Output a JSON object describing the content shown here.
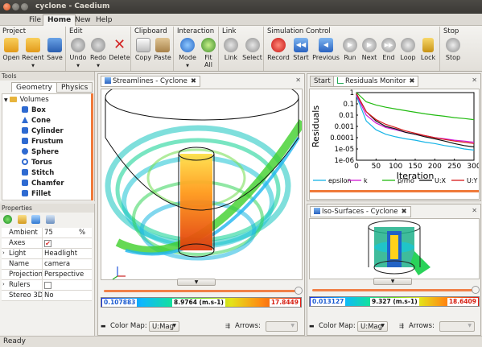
{
  "window": {
    "title": "cyclone - Caedium"
  },
  "menu": {
    "tabs": [
      "File",
      "Home",
      "New",
      "Help"
    ],
    "active": "Home"
  },
  "ribbon": {
    "groups": [
      {
        "title": "Project",
        "buttons": [
          "Open",
          "Recent",
          "Save"
        ]
      },
      {
        "title": "Edit",
        "buttons": [
          "Undo",
          "Redo",
          "Delete"
        ]
      },
      {
        "title": "Clipboard",
        "buttons": [
          "Copy",
          "Paste"
        ]
      },
      {
        "title": "Interaction",
        "buttons": [
          "Mode",
          "Fit All"
        ]
      },
      {
        "title": "Link",
        "buttons": [
          "Link",
          "Select"
        ]
      },
      {
        "title": "Simulation Control",
        "buttons": [
          "Record",
          "Start",
          "Previous",
          "Run",
          "Next",
          "End",
          "Loop",
          "Lock"
        ]
      },
      {
        "title": "Stop",
        "buttons": [
          "Stop"
        ]
      }
    ]
  },
  "tools": {
    "header": "Tools",
    "tabs": [
      "Geometry",
      "Physics"
    ],
    "active_tab": "Geometry",
    "tree_root": "Volumes",
    "tree_items": [
      "Box",
      "Cone",
      "Cylinder",
      "Frustum",
      "Sphere",
      "Torus",
      "Stitch",
      "Chamfer",
      "Fillet"
    ]
  },
  "properties": {
    "header": "Properties",
    "rows": [
      {
        "key": "Ambient",
        "value": "75",
        "unit": "%"
      },
      {
        "key": "Axes",
        "value": "",
        "checked": true
      },
      {
        "key": "Light",
        "value": "Headlight",
        "expandable": true
      },
      {
        "key": "Name",
        "value": "camera"
      },
      {
        "key": "Projection",
        "value": "Perspective"
      },
      {
        "key": "Rulers",
        "value": "",
        "checked": false,
        "expandable": true
      },
      {
        "key": "Stereo 3D",
        "value": "No"
      }
    ]
  },
  "viewport_streamlines": {
    "tab": "Streamlines - Cyclone",
    "colorbar": {
      "min": "0.107883",
      "mid": "8.9764 (m.s-1)",
      "max": "17.8449"
    },
    "color_map_label": "Color Map:",
    "color_map_value": "U:Mag",
    "arrows_label": "Arrows:"
  },
  "viewport_residuals": {
    "tabs": [
      "Start",
      "Residuals Monitor"
    ],
    "active_tab": "Residuals Monitor"
  },
  "viewport_iso": {
    "tab": "Iso-Surfaces - Cyclone",
    "colorbar": {
      "min": "0.013127",
      "mid": "9.327 (m.s-1)",
      "max": "18.6409"
    },
    "color_map_label": "Color Map:",
    "color_map_value": "U:Mag",
    "arrows_label": "Arrows:"
  },
  "chart_data": {
    "type": "line",
    "xlabel": "Iteration",
    "ylabel": "Residuals",
    "log_y": true,
    "xlim": [
      0,
      300
    ],
    "ylim": [
      1e-06,
      1
    ],
    "x_ticks": [
      "0",
      "50",
      "100",
      "150",
      "200",
      "250",
      "300"
    ],
    "y_ticks": [
      "1",
      "0.1",
      "0.01",
      "0.001",
      "0.0001",
      "1e-05",
      "1e-06"
    ],
    "x": [
      0,
      25,
      50,
      75,
      100,
      125,
      150,
      175,
      200,
      225,
      250,
      275,
      300
    ],
    "series": [
      {
        "name": "epsilon",
        "color": "#16b4e6",
        "values": [
          0.5,
          0.003,
          0.0005,
          0.0002,
          0.00012,
          8e-05,
          6e-05,
          4e-05,
          3e-05,
          2e-05,
          1.5e-05,
          1e-05,
          8e-06
        ]
      },
      {
        "name": "k",
        "color": "#d219d6",
        "values": [
          0.6,
          0.01,
          0.002,
          0.0008,
          0.0005,
          0.0003,
          0.0002,
          0.00015,
          0.0001,
          8e-05,
          6e-05,
          5e-05,
          4e-05
        ]
      },
      {
        "name": "p/rho",
        "color": "#22bb11",
        "values": [
          1.0,
          0.15,
          0.08,
          0.05,
          0.035,
          0.025,
          0.018,
          0.013,
          0.01,
          0.008,
          0.006,
          0.005,
          0.004
        ]
      },
      {
        "name": "U:X",
        "color": "#111111",
        "values": [
          0.8,
          0.02,
          0.003,
          0.001,
          0.0006,
          0.0003,
          0.0002,
          0.00012,
          8e-05,
          5e-05,
          3e-05,
          2e-05,
          1.5e-05
        ]
      },
      {
        "name": "U:Y",
        "color": "#d81b1b",
        "values": [
          0.8,
          0.02,
          0.004,
          0.0015,
          0.0008,
          0.0004,
          0.00025,
          0.00015,
          0.0001,
          7e-05,
          5e-05,
          4e-05,
          3e-05
        ]
      }
    ]
  },
  "status": {
    "text": "Ready"
  }
}
